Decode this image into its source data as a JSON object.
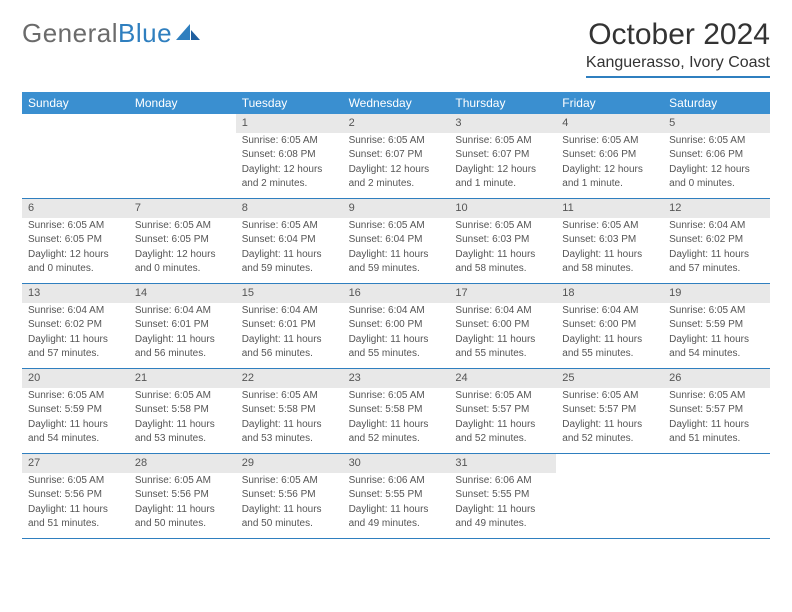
{
  "logo": {
    "part1": "General",
    "part2": "Blue"
  },
  "title": "October 2024",
  "location": "Kanguerasso, Ivory Coast",
  "daynames": [
    "Sunday",
    "Monday",
    "Tuesday",
    "Wednesday",
    "Thursday",
    "Friday",
    "Saturday"
  ],
  "colors": {
    "header_bg": "#3a8fd0",
    "rule": "#2f7fbf",
    "daynum_bg": "#e8e8e8",
    "text": "#555555"
  },
  "weeks": [
    [
      null,
      null,
      {
        "n": "1",
        "sunrise": "Sunrise: 6:05 AM",
        "sunset": "Sunset: 6:08 PM",
        "day1": "Daylight: 12 hours",
        "day2": "and 2 minutes."
      },
      {
        "n": "2",
        "sunrise": "Sunrise: 6:05 AM",
        "sunset": "Sunset: 6:07 PM",
        "day1": "Daylight: 12 hours",
        "day2": "and 2 minutes."
      },
      {
        "n": "3",
        "sunrise": "Sunrise: 6:05 AM",
        "sunset": "Sunset: 6:07 PM",
        "day1": "Daylight: 12 hours",
        "day2": "and 1 minute."
      },
      {
        "n": "4",
        "sunrise": "Sunrise: 6:05 AM",
        "sunset": "Sunset: 6:06 PM",
        "day1": "Daylight: 12 hours",
        "day2": "and 1 minute."
      },
      {
        "n": "5",
        "sunrise": "Sunrise: 6:05 AM",
        "sunset": "Sunset: 6:06 PM",
        "day1": "Daylight: 12 hours",
        "day2": "and 0 minutes."
      }
    ],
    [
      {
        "n": "6",
        "sunrise": "Sunrise: 6:05 AM",
        "sunset": "Sunset: 6:05 PM",
        "day1": "Daylight: 12 hours",
        "day2": "and 0 minutes."
      },
      {
        "n": "7",
        "sunrise": "Sunrise: 6:05 AM",
        "sunset": "Sunset: 6:05 PM",
        "day1": "Daylight: 12 hours",
        "day2": "and 0 minutes."
      },
      {
        "n": "8",
        "sunrise": "Sunrise: 6:05 AM",
        "sunset": "Sunset: 6:04 PM",
        "day1": "Daylight: 11 hours",
        "day2": "and 59 minutes."
      },
      {
        "n": "9",
        "sunrise": "Sunrise: 6:05 AM",
        "sunset": "Sunset: 6:04 PM",
        "day1": "Daylight: 11 hours",
        "day2": "and 59 minutes."
      },
      {
        "n": "10",
        "sunrise": "Sunrise: 6:05 AM",
        "sunset": "Sunset: 6:03 PM",
        "day1": "Daylight: 11 hours",
        "day2": "and 58 minutes."
      },
      {
        "n": "11",
        "sunrise": "Sunrise: 6:05 AM",
        "sunset": "Sunset: 6:03 PM",
        "day1": "Daylight: 11 hours",
        "day2": "and 58 minutes."
      },
      {
        "n": "12",
        "sunrise": "Sunrise: 6:04 AM",
        "sunset": "Sunset: 6:02 PM",
        "day1": "Daylight: 11 hours",
        "day2": "and 57 minutes."
      }
    ],
    [
      {
        "n": "13",
        "sunrise": "Sunrise: 6:04 AM",
        "sunset": "Sunset: 6:02 PM",
        "day1": "Daylight: 11 hours",
        "day2": "and 57 minutes."
      },
      {
        "n": "14",
        "sunrise": "Sunrise: 6:04 AM",
        "sunset": "Sunset: 6:01 PM",
        "day1": "Daylight: 11 hours",
        "day2": "and 56 minutes."
      },
      {
        "n": "15",
        "sunrise": "Sunrise: 6:04 AM",
        "sunset": "Sunset: 6:01 PM",
        "day1": "Daylight: 11 hours",
        "day2": "and 56 minutes."
      },
      {
        "n": "16",
        "sunrise": "Sunrise: 6:04 AM",
        "sunset": "Sunset: 6:00 PM",
        "day1": "Daylight: 11 hours",
        "day2": "and 55 minutes."
      },
      {
        "n": "17",
        "sunrise": "Sunrise: 6:04 AM",
        "sunset": "Sunset: 6:00 PM",
        "day1": "Daylight: 11 hours",
        "day2": "and 55 minutes."
      },
      {
        "n": "18",
        "sunrise": "Sunrise: 6:04 AM",
        "sunset": "Sunset: 6:00 PM",
        "day1": "Daylight: 11 hours",
        "day2": "and 55 minutes."
      },
      {
        "n": "19",
        "sunrise": "Sunrise: 6:05 AM",
        "sunset": "Sunset: 5:59 PM",
        "day1": "Daylight: 11 hours",
        "day2": "and 54 minutes."
      }
    ],
    [
      {
        "n": "20",
        "sunrise": "Sunrise: 6:05 AM",
        "sunset": "Sunset: 5:59 PM",
        "day1": "Daylight: 11 hours",
        "day2": "and 54 minutes."
      },
      {
        "n": "21",
        "sunrise": "Sunrise: 6:05 AM",
        "sunset": "Sunset: 5:58 PM",
        "day1": "Daylight: 11 hours",
        "day2": "and 53 minutes."
      },
      {
        "n": "22",
        "sunrise": "Sunrise: 6:05 AM",
        "sunset": "Sunset: 5:58 PM",
        "day1": "Daylight: 11 hours",
        "day2": "and 53 minutes."
      },
      {
        "n": "23",
        "sunrise": "Sunrise: 6:05 AM",
        "sunset": "Sunset: 5:58 PM",
        "day1": "Daylight: 11 hours",
        "day2": "and 52 minutes."
      },
      {
        "n": "24",
        "sunrise": "Sunrise: 6:05 AM",
        "sunset": "Sunset: 5:57 PM",
        "day1": "Daylight: 11 hours",
        "day2": "and 52 minutes."
      },
      {
        "n": "25",
        "sunrise": "Sunrise: 6:05 AM",
        "sunset": "Sunset: 5:57 PM",
        "day1": "Daylight: 11 hours",
        "day2": "and 52 minutes."
      },
      {
        "n": "26",
        "sunrise": "Sunrise: 6:05 AM",
        "sunset": "Sunset: 5:57 PM",
        "day1": "Daylight: 11 hours",
        "day2": "and 51 minutes."
      }
    ],
    [
      {
        "n": "27",
        "sunrise": "Sunrise: 6:05 AM",
        "sunset": "Sunset: 5:56 PM",
        "day1": "Daylight: 11 hours",
        "day2": "and 51 minutes."
      },
      {
        "n": "28",
        "sunrise": "Sunrise: 6:05 AM",
        "sunset": "Sunset: 5:56 PM",
        "day1": "Daylight: 11 hours",
        "day2": "and 50 minutes."
      },
      {
        "n": "29",
        "sunrise": "Sunrise: 6:05 AM",
        "sunset": "Sunset: 5:56 PM",
        "day1": "Daylight: 11 hours",
        "day2": "and 50 minutes."
      },
      {
        "n": "30",
        "sunrise": "Sunrise: 6:06 AM",
        "sunset": "Sunset: 5:55 PM",
        "day1": "Daylight: 11 hours",
        "day2": "and 49 minutes."
      },
      {
        "n": "31",
        "sunrise": "Sunrise: 6:06 AM",
        "sunset": "Sunset: 5:55 PM",
        "day1": "Daylight: 11 hours",
        "day2": "and 49 minutes."
      },
      null,
      null
    ]
  ]
}
